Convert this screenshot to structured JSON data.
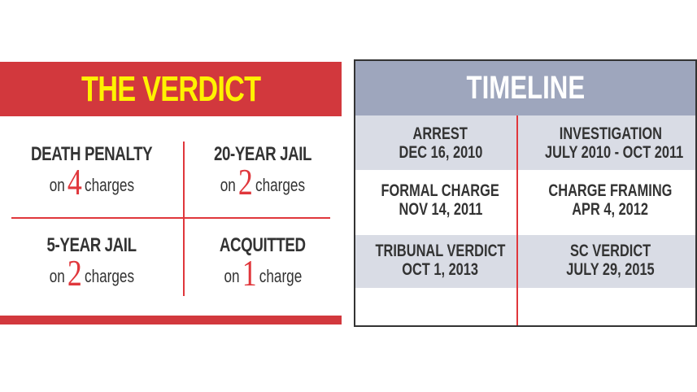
{
  "verdict": {
    "title": "THE VERDICT",
    "items": [
      {
        "label": "DEATH PENALTY",
        "prefix": "on",
        "count": "4",
        "suffix": "charges"
      },
      {
        "label": "20-YEAR JAIL",
        "prefix": "on",
        "count": "2",
        "suffix": "charges"
      },
      {
        "label": "5-YEAR JAIL",
        "prefix": "on",
        "count": "2",
        "suffix": "charges"
      },
      {
        "label": "ACQUITTED",
        "prefix": "on",
        "count": "1",
        "suffix": "charge"
      }
    ]
  },
  "timeline": {
    "title": "TIMELINE",
    "events": [
      {
        "event": "ARREST",
        "date": "DEC 16, 2010"
      },
      {
        "event": "INVESTIGATION",
        "date": "JULY 2010 - OCT 2011"
      },
      {
        "event": "FORMAL CHARGE",
        "date": "NOV 14, 2011"
      },
      {
        "event": "CHARGE FRAMING",
        "date": "APR 4, 2012"
      },
      {
        "event": "TRIBUNAL VERDICT",
        "date": "OCT 1, 2013"
      },
      {
        "event": "SC VERDICT",
        "date": "JULY 29, 2015"
      }
    ]
  },
  "colors": {
    "verdict_red": "#d2383d",
    "title_yellow": "#fff200",
    "timeline_header": "#9ea6bd",
    "timeline_band": "#d9dce5"
  }
}
